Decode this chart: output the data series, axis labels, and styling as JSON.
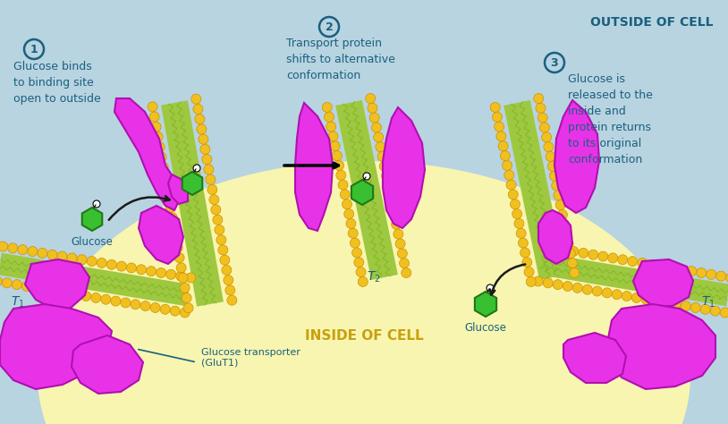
{
  "bg_color": "#b8d4e0",
  "cell_color": "#f8f5b0",
  "membrane_green": "#9dc840",
  "membrane_yellow": "#f0c020",
  "protein_pink": "#e832e8",
  "protein_edge": "#b010b0",
  "glucose_green": "#38c030",
  "glucose_edge": "#207818",
  "text_color": "#1a6080",
  "outside_text": "OUTSIDE OF CELL",
  "inside_text": "INSIDE OF CELL",
  "step1_text": "Glucose binds\nto binding site\nopen to outside",
  "step2_text": "Transport protein\nshifts to alternative\nconformation",
  "step3_text": "Glucose is\nreleased to the\ninside and\nprotein returns\nto its original\nconformation",
  "label_t1": "T",
  "label_t2": "T",
  "glucose_label": "Glucose",
  "transporter_label": "Glucose transporter\n(GluT1)",
  "fig_width": 8.14,
  "fig_height": 4.74,
  "dpi": 100
}
